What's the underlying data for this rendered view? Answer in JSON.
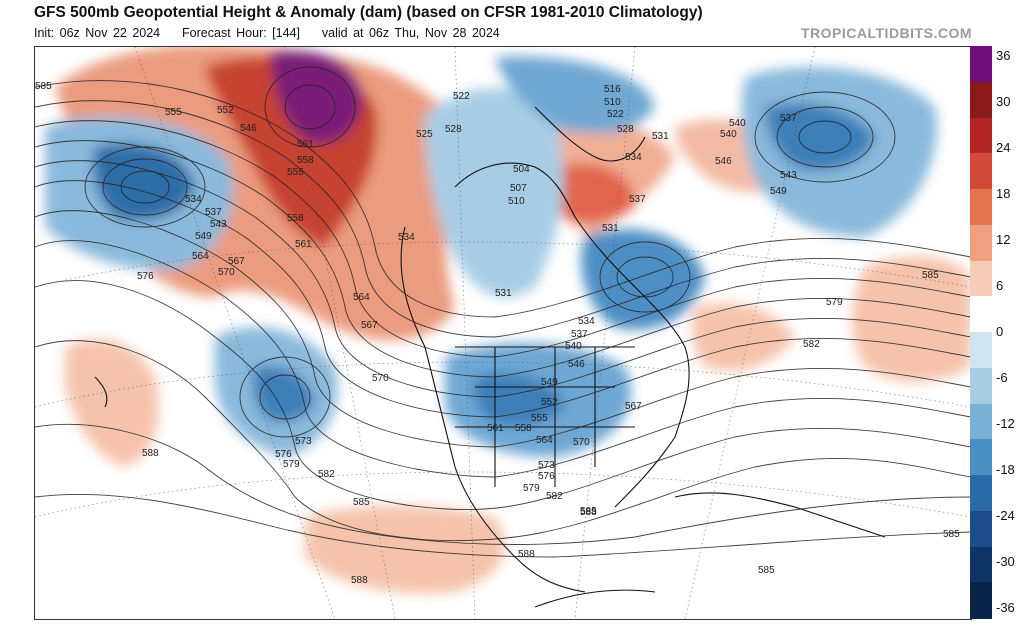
{
  "header": {
    "title": "GFS 500mb Geopotential Height & Anomaly (dam) (based on CFSR 1981-2010 Climatology)",
    "init": "Init: 06z Nov 22 2024",
    "forecast_hour": "Forecast Hour: [144]",
    "valid": "valid at 06z Thu, Nov 28 2024",
    "brand": "TROPICALTIDBITS.COM"
  },
  "colorbar": {
    "labels": [
      "36",
      "30",
      "24",
      "18",
      "12",
      "6",
      "0",
      "-6",
      "-12",
      "-18",
      "-24",
      "-30",
      "-36"
    ],
    "colors": [
      "#6e0f7a",
      "#8c1a1a",
      "#b32424",
      "#d14a3a",
      "#e3734f",
      "#f0a07e",
      "#f7cdb7",
      "#ffffff",
      "#cfe4f0",
      "#a7cde5",
      "#78b0d6",
      "#4a8fc4",
      "#2a6aa8",
      "#1c4d8a",
      "#0f3468",
      "#0a2248"
    ]
  },
  "map": {
    "height_labels": [
      "585",
      "555",
      "552",
      "546",
      "534",
      "537",
      "543",
      "549",
      "564",
      "570",
      "567",
      "576",
      "561",
      "558",
      "555",
      "558",
      "561",
      "564",
      "567",
      "570",
      "573",
      "576",
      "579",
      "582",
      "585",
      "588",
      "588",
      "522",
      "525",
      "528",
      "516",
      "510",
      "522",
      "528",
      "531",
      "534",
      "507",
      "504",
      "510",
      "537",
      "531",
      "534",
      "531",
      "534",
      "537",
      "540",
      "546",
      "549",
      "552",
      "555",
      "561",
      "558",
      "564",
      "570",
      "567",
      "573",
      "576",
      "579",
      "582",
      "585",
      "588",
      "540",
      "540",
      "537",
      "546",
      "543",
      "549",
      "579",
      "582",
      "585",
      "585",
      "588",
      "585"
    ],
    "regions": [
      {
        "name": "north-pacific-trough",
        "anomaly": "negative"
      },
      {
        "name": "alaska-ridge",
        "anomaly": "positive"
      },
      {
        "name": "hudson-bay-low",
        "anomaly": "negative"
      },
      {
        "name": "great-lakes-trough",
        "anomaly": "negative"
      },
      {
        "name": "central-us-trough",
        "anomaly": "negative"
      },
      {
        "name": "eastern-pacific-low",
        "anomaly": "negative"
      },
      {
        "name": "north-atlantic-low",
        "anomaly": "negative"
      },
      {
        "name": "greenland-ridge",
        "anomaly": "positive"
      }
    ]
  }
}
